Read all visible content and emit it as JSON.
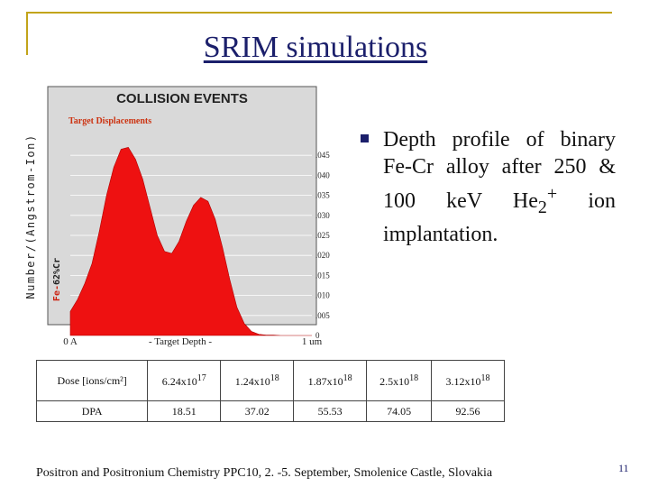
{
  "slide": {
    "title": "SRIM simulations",
    "bullet_text_before": "Depth profile of binary Fe-Cr alloy after 250 & 100 keV He",
    "bullet_sub": "2",
    "bullet_sup": "+",
    "bullet_text_after": " ion implantation.",
    "footer": "Positron and Positronium Chemistry PPC10, 2. -5. September, Smolenice Castle, Slovakia",
    "page_number": "11",
    "accent_color": "#1b1f6b",
    "deco_color": "#c2a41a"
  },
  "figure": {
    "ylabel_outer": "Number/(Angstrom-Ion)",
    "ylabel_inner_prefix": "Fe-",
    "ylabel_inner_cr": "62%Cr"
  },
  "chart_data": {
    "type": "area",
    "title": "COLLISION EVENTS",
    "subtitle": "Target Displacements",
    "xlabel": "- Target Depth -",
    "x_ticks": [
      "0 A",
      "1 um"
    ],
    "ylim": [
      0,
      0.05
    ],
    "y_ticks": [
      ".045",
      ".040",
      ".035",
      ".030",
      ".025",
      ".020",
      ".015",
      ".010",
      ".005",
      "0"
    ],
    "y_tick_values": [
      0.045,
      0.04,
      0.035,
      0.03,
      0.025,
      0.02,
      0.015,
      0.01,
      0.005,
      0
    ],
    "xlim": [
      0,
      1
    ],
    "color": "#ee1111",
    "grid": true,
    "series": [
      {
        "x": [
          0.0,
          0.03,
          0.06,
          0.09,
          0.12,
          0.15,
          0.18,
          0.21,
          0.24,
          0.27,
          0.3,
          0.33,
          0.36,
          0.39,
          0.42,
          0.45,
          0.48,
          0.51,
          0.54,
          0.57,
          0.6,
          0.63,
          0.66,
          0.69,
          0.72,
          0.75,
          0.78,
          0.81,
          0.84,
          0.87,
          0.9,
          0.93,
          0.96,
          1.0
        ],
        "values": [
          0.006,
          0.009,
          0.013,
          0.018,
          0.026,
          0.035,
          0.042,
          0.0465,
          0.047,
          0.044,
          0.039,
          0.032,
          0.025,
          0.021,
          0.0205,
          0.0235,
          0.0285,
          0.0325,
          0.0345,
          0.0335,
          0.029,
          0.022,
          0.014,
          0.007,
          0.003,
          0.001,
          0.0003,
          0.0001,
          0.0001,
          0.0,
          0.0,
          0.0,
          0.0,
          0.0
        ]
      }
    ]
  },
  "dose_table": {
    "row1_label": "Dose [ions/cm²]",
    "dose": [
      {
        "base": "6.24x10",
        "exp": "17"
      },
      {
        "base": "1.24x10",
        "exp": "18"
      },
      {
        "base": "1.87x10",
        "exp": "18"
      },
      {
        "base": "2.5x10",
        "exp": "18"
      },
      {
        "base": "3.12x10",
        "exp": "18"
      }
    ],
    "row2_label": "DPA",
    "dpa": [
      "18.51",
      "37.02",
      "55.53",
      "74.05",
      "92.56"
    ]
  }
}
